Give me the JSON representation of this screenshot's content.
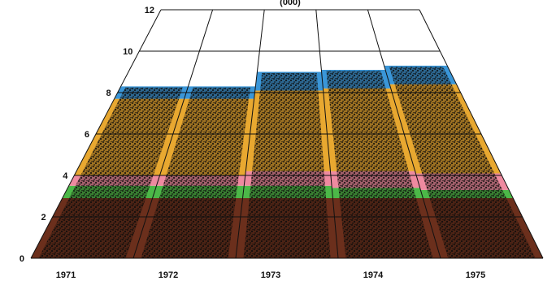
{
  "chart_data": {
    "type": "area",
    "title": "(000)",
    "xlabel": "",
    "ylabel": "",
    "categories": [
      "1971",
      "1972",
      "1973",
      "1974",
      "1975"
    ],
    "y_ticks": [
      "0",
      "2",
      "4",
      "6",
      "8",
      "10",
      "12"
    ],
    "ylim": [
      0,
      12
    ],
    "grid": true,
    "legend": "none",
    "series": [
      {
        "color": "#6b2f1c",
        "values": [
          2.9,
          2.9,
          2.9,
          2.9,
          2.9
        ]
      },
      {
        "color": "#4cb848",
        "values": [
          3.5,
          3.5,
          3.5,
          3.4,
          3.3
        ]
      },
      {
        "color": "#ee8aa0",
        "values": [
          4.0,
          4.0,
          4.2,
          4.2,
          4.1
        ]
      },
      {
        "color": "#e8a830",
        "values": [
          7.7,
          7.7,
          8.1,
          8.2,
          8.4
        ]
      },
      {
        "color": "#3a96d8",
        "values": [
          8.3,
          8.3,
          9.0,
          9.1,
          9.3
        ]
      }
    ],
    "bar_columns_pattern": "dark speckled overlay on each year column"
  }
}
